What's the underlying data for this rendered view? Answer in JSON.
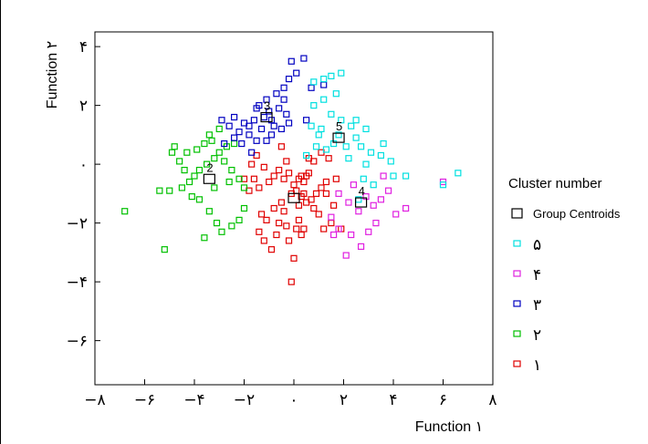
{
  "chart_data": {
    "type": "scatter",
    "xlabel": "Function ١",
    "ylabel": "Function ٢",
    "xlim": [
      -8,
      8
    ],
    "ylim": [
      -7.5,
      4.5
    ],
    "x_ticks": [
      {
        "value": -8,
        "label": "−٨"
      },
      {
        "value": -6,
        "label": "−۶"
      },
      {
        "value": -4,
        "label": "−۴"
      },
      {
        "value": -2,
        "label": "−٢"
      },
      {
        "value": 0,
        "label": "٠"
      },
      {
        "value": 2,
        "label": "٢"
      },
      {
        "value": 4,
        "label": "۴"
      },
      {
        "value": 6,
        "label": "۶"
      },
      {
        "value": 8,
        "label": "٨"
      }
    ],
    "y_ticks": [
      {
        "value": 4,
        "label": "۴"
      },
      {
        "value": 2,
        "label": "٢"
      },
      {
        "value": 0,
        "label": "٠"
      },
      {
        "value": -2,
        "label": "−٢"
      },
      {
        "value": -4,
        "label": "−۴"
      },
      {
        "value": -6,
        "label": "−۶"
      }
    ],
    "grid": false,
    "legend_position": "right",
    "legend": {
      "title": "Cluster number",
      "centroid_label": "Group Centroids",
      "entries": [
        {
          "cluster": 5,
          "label": "۵",
          "color": "#00e0e0"
        },
        {
          "cluster": 4,
          "label": "۴",
          "color": "#e020e0"
        },
        {
          "cluster": 3,
          "label": "٣",
          "color": "#0000c0"
        },
        {
          "cluster": 2,
          "label": "٢",
          "color": "#00c000"
        },
        {
          "cluster": 1,
          "label": "١",
          "color": "#e00000"
        }
      ]
    },
    "centroids": [
      {
        "cluster": 1,
        "label": "",
        "x": 0.0,
        "y": -1.15
      },
      {
        "cluster": 2,
        "label": "2",
        "x": -3.4,
        "y": -0.5
      },
      {
        "cluster": 3,
        "label": "3",
        "x": -1.1,
        "y": 1.6
      },
      {
        "cluster": 4,
        "label": "4",
        "x": 2.7,
        "y": -1.3
      },
      {
        "cluster": 5,
        "label": "5",
        "x": 1.8,
        "y": 0.9
      }
    ],
    "series": [
      {
        "name": "١",
        "cluster": 1,
        "color": "#e00000",
        "points": [
          [
            -1.5,
            0.3
          ],
          [
            -1.2,
            -0.1
          ],
          [
            -1.6,
            -0.5
          ],
          [
            -2.0,
            -0.5
          ],
          [
            -1.4,
            -0.8
          ],
          [
            -1.8,
            -0.9
          ],
          [
            -1.0,
            -0.6
          ],
          [
            -0.8,
            -0.4
          ],
          [
            -0.6,
            -0.2
          ],
          [
            -0.4,
            -0.5
          ],
          [
            -0.2,
            -0.3
          ],
          [
            0.0,
            -0.7
          ],
          [
            0.2,
            -0.5
          ],
          [
            0.3,
            -0.4
          ],
          [
            0.4,
            -0.6
          ],
          [
            0.5,
            -0.4
          ],
          [
            0.6,
            -0.3
          ],
          [
            0.1,
            -0.9
          ],
          [
            -0.1,
            -1.0
          ],
          [
            0.3,
            -1.1
          ],
          [
            0.5,
            -1.3
          ],
          [
            0.2,
            -1.4
          ],
          [
            0.7,
            -1.2
          ],
          [
            0.9,
            -1.0
          ],
          [
            1.1,
            -0.8
          ],
          [
            1.3,
            -0.6
          ],
          [
            0.8,
            -1.5
          ],
          [
            1.0,
            -1.7
          ],
          [
            -0.5,
            -1.3
          ],
          [
            -0.8,
            -1.5
          ],
          [
            -1.3,
            -1.7
          ],
          [
            -1.1,
            -1.9
          ],
          [
            -0.6,
            -2.0
          ],
          [
            -0.3,
            -2.1
          ],
          [
            0.1,
            -2.2
          ],
          [
            0.4,
            -2.2
          ],
          [
            -1.4,
            -2.3
          ],
          [
            -1.2,
            -2.6
          ],
          [
            -0.9,
            -2.9
          ],
          [
            -0.2,
            -2.6
          ],
          [
            0.3,
            -2.4
          ],
          [
            1.2,
            -2.2
          ],
          [
            1.5,
            -2.0
          ],
          [
            1.9,
            -2.2
          ],
          [
            1.6,
            -1.4
          ],
          [
            -0.5,
            0.6
          ],
          [
            0.8,
            0.1
          ],
          [
            1.1,
            0.4
          ],
          [
            1.4,
            0.2
          ],
          [
            -0.3,
            0.1
          ],
          [
            0.0,
            -3.2
          ],
          [
            -0.1,
            -4.0
          ],
          [
            1.7,
            -0.5
          ],
          [
            0.4,
            -1.0
          ],
          [
            -0.4,
            -1.6
          ],
          [
            1.3,
            -1.0
          ],
          [
            -1.7,
            0.0
          ],
          [
            0.6,
            0.2
          ],
          [
            0.2,
            -1.9
          ],
          [
            -0.7,
            -2.4
          ]
        ]
      },
      {
        "name": "٢",
        "cluster": 2,
        "color": "#00c000",
        "points": [
          [
            -6.8,
            -1.6
          ],
          [
            -5.2,
            -2.9
          ],
          [
            -5.4,
            -0.9
          ],
          [
            -5.0,
            -0.9
          ],
          [
            -4.5,
            -0.8
          ],
          [
            -4.2,
            -0.6
          ],
          [
            -4.0,
            -0.4
          ],
          [
            -3.8,
            -0.2
          ],
          [
            -3.5,
            0.0
          ],
          [
            -3.2,
            0.2
          ],
          [
            -2.8,
            0.1
          ],
          [
            -2.5,
            -0.2
          ],
          [
            -4.8,
            0.6
          ],
          [
            -4.6,
            0.1
          ],
          [
            -4.3,
            0.4
          ],
          [
            -3.9,
            0.5
          ],
          [
            -3.6,
            0.7
          ],
          [
            -3.3,
            0.8
          ],
          [
            -3.0,
            0.4
          ],
          [
            -2.7,
            0.6
          ],
          [
            -2.4,
            0.7
          ],
          [
            -3.4,
            1.0
          ],
          [
            -3.0,
            1.2
          ],
          [
            -2.6,
            -0.6
          ],
          [
            -2.2,
            -0.5
          ],
          [
            -2.0,
            -0.8
          ],
          [
            -3.8,
            -1.2
          ],
          [
            -3.4,
            -1.6
          ],
          [
            -3.1,
            -2.0
          ],
          [
            -2.9,
            -2.3
          ],
          [
            -2.5,
            -2.1
          ],
          [
            -2.2,
            -1.9
          ],
          [
            -3.6,
            -2.5
          ],
          [
            -4.1,
            -1.1
          ],
          [
            -2.0,
            -1.5
          ],
          [
            -4.9,
            0.4
          ],
          [
            -3.2,
            -0.8
          ],
          [
            -4.4,
            -0.2
          ]
        ]
      },
      {
        "name": "٣",
        "cluster": 3,
        "color": "#0000c0",
        "points": [
          [
            -0.1,
            3.5
          ],
          [
            0.4,
            3.6
          ],
          [
            -0.2,
            2.9
          ],
          [
            0.1,
            3.1
          ],
          [
            -0.4,
            2.6
          ],
          [
            -0.7,
            2.4
          ],
          [
            -1.1,
            2.2
          ],
          [
            -1.4,
            2.0
          ],
          [
            -1.0,
            1.8
          ],
          [
            -0.6,
            1.9
          ],
          [
            -0.3,
            1.7
          ],
          [
            -0.9,
            1.5
          ],
          [
            -1.2,
            1.6
          ],
          [
            -1.6,
            1.5
          ],
          [
            -2.0,
            1.4
          ],
          [
            -2.4,
            1.6
          ],
          [
            -2.6,
            1.3
          ],
          [
            -2.9,
            1.5
          ],
          [
            -2.2,
            1.1
          ],
          [
            -1.8,
            1.0
          ],
          [
            -1.5,
            0.8
          ],
          [
            -2.1,
            0.7
          ],
          [
            -1.3,
            1.2
          ],
          [
            -0.8,
            1.3
          ],
          [
            -0.5,
            1.2
          ],
          [
            -0.2,
            1.4
          ],
          [
            -1.7,
            0.4
          ],
          [
            -2.4,
            0.9
          ],
          [
            -2.8,
            0.7
          ],
          [
            -0.9,
            1.0
          ],
          [
            0.5,
            1.5
          ],
          [
            -1.5,
            1.9
          ],
          [
            -0.4,
            2.2
          ],
          [
            -1.8,
            1.3
          ],
          [
            1.2,
            2.7
          ],
          [
            0.7,
            2.6
          ],
          [
            -1.1,
            0.8
          ]
        ]
      },
      {
        "name": "۴",
        "cluster": 4,
        "color": "#e020e0",
        "points": [
          [
            1.8,
            -1.0
          ],
          [
            2.2,
            -1.3
          ],
          [
            2.6,
            -1.6
          ],
          [
            2.9,
            -1.1
          ],
          [
            3.2,
            -1.4
          ],
          [
            3.5,
            -1.2
          ],
          [
            3.8,
            -0.9
          ],
          [
            4.1,
            -1.7
          ],
          [
            3.0,
            -2.3
          ],
          [
            2.3,
            -2.4
          ],
          [
            1.8,
            -2.2
          ],
          [
            2.7,
            -2.8
          ],
          [
            2.1,
            -3.1
          ],
          [
            4.5,
            -1.5
          ],
          [
            3.6,
            -0.4
          ],
          [
            6.0,
            -0.6
          ],
          [
            1.5,
            -1.8
          ],
          [
            2.4,
            -0.7
          ],
          [
            3.3,
            -2.0
          ],
          [
            1.6,
            -2.4
          ]
        ]
      },
      {
        "name": "۵",
        "cluster": 5,
        "color": "#00e0e0",
        "points": [
          [
            0.8,
            2.8
          ],
          [
            1.2,
            2.9
          ],
          [
            1.5,
            3.0
          ],
          [
            1.9,
            3.1
          ],
          [
            1.7,
            2.4
          ],
          [
            1.2,
            2.2
          ],
          [
            0.8,
            2.0
          ],
          [
            1.5,
            1.7
          ],
          [
            1.9,
            1.5
          ],
          [
            2.3,
            1.3
          ],
          [
            2.5,
            1.5
          ],
          [
            2.9,
            1.2
          ],
          [
            1.1,
            1.2
          ],
          [
            0.7,
            1.3
          ],
          [
            0.9,
            0.6
          ],
          [
            1.3,
            0.5
          ],
          [
            1.6,
            0.7
          ],
          [
            2.1,
            0.6
          ],
          [
            2.5,
            0.9
          ],
          [
            2.7,
            0.6
          ],
          [
            3.1,
            0.4
          ],
          [
            3.5,
            0.3
          ],
          [
            3.9,
            0.1
          ],
          [
            4.0,
            -0.4
          ],
          [
            2.8,
            -0.5
          ],
          [
            3.2,
            -0.7
          ],
          [
            2.6,
            -1.2
          ],
          [
            6.0,
            -0.7
          ],
          [
            6.6,
            -0.3
          ],
          [
            1.0,
            1.0
          ],
          [
            4.5,
            -0.4
          ],
          [
            2.2,
            0.2
          ],
          [
            1.8,
            1.0
          ],
          [
            0.5,
            0.3
          ],
          [
            2.9,
            0.0
          ],
          [
            3.6,
            0.7
          ]
        ]
      }
    ]
  }
}
